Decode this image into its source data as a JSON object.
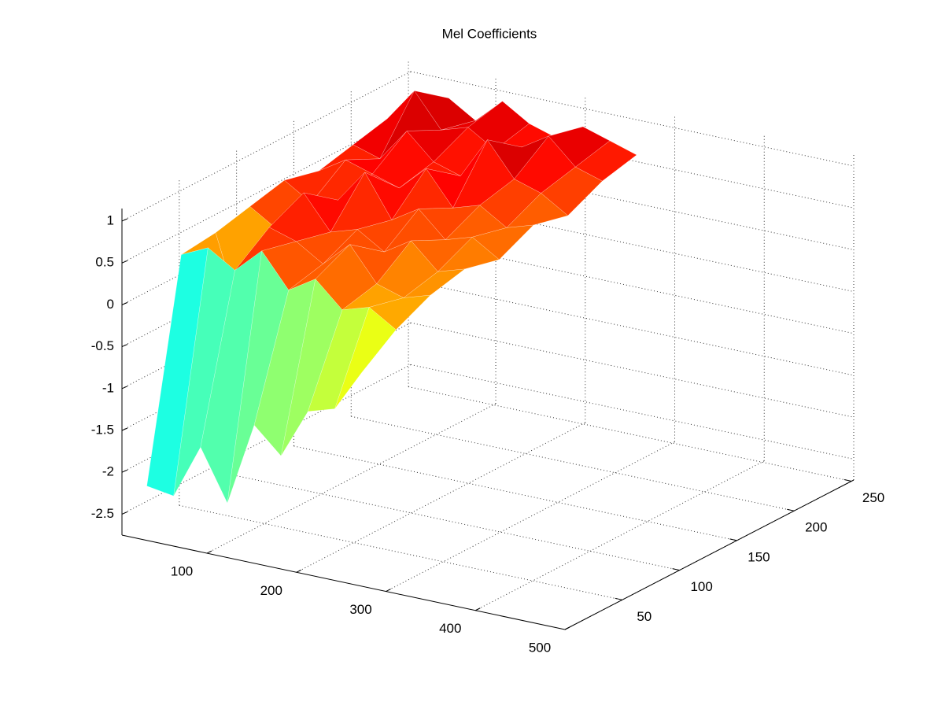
{
  "chart_data": {
    "type": "surface",
    "title": "Mel Coefficients",
    "x": [
      20,
      50,
      80,
      110,
      140,
      170,
      200,
      230,
      260
    ],
    "y": [
      10,
      40,
      70,
      100,
      130,
      160,
      190,
      220,
      250
    ],
    "z": [
      [
        -2.2,
        -2.25,
        -1.6,
        -2.2,
        -1.2,
        -1.5,
        -0.9,
        -0.8,
        -0.3
      ],
      [
        0.35,
        0.5,
        0.3,
        0.6,
        0.2,
        0.4,
        0.1,
        0.2,
        0.0
      ],
      [
        0.4,
        -0.6,
        0.6,
        0.5,
        0.3,
        0.6,
        0.2,
        0.1,
        0.2
      ],
      [
        0.5,
        0.3,
        0.8,
        0.4,
        0.5,
        0.3,
        0.5,
        0.2,
        0.3
      ],
      [
        0.6,
        0.4,
        0.5,
        0.9,
        0.4,
        0.6,
        0.3,
        0.4,
        0.2
      ],
      [
        0.5,
        0.7,
        0.6,
        0.5,
        0.8,
        0.4,
        0.5,
        0.3,
        0.4
      ],
      [
        0.6,
        0.5,
        0.9,
        0.6,
        0.5,
        1.0,
        0.6,
        0.5,
        0.3
      ],
      [
        0.7,
        1.1,
        0.7,
        0.8,
        0.6,
        0.7,
        0.9,
        0.6,
        0.5
      ],
      [
        0.6,
        0.8,
        0.6,
        0.9,
        0.7,
        0.6,
        0.8,
        0.7,
        0.6
      ]
    ],
    "xlim": [
      5,
      500
    ],
    "xticks": [
      100,
      200,
      300,
      400,
      500
    ],
    "ylim": [
      0,
      252
    ],
    "yticks": [
      50,
      100,
      150,
      200,
      250
    ],
    "zlim": [
      -2.75,
      1.15
    ],
    "zticks": [
      -2.5,
      -2,
      -1.5,
      -1,
      -0.5,
      0,
      0.5,
      1
    ],
    "grid": true,
    "colormap": "jet"
  }
}
